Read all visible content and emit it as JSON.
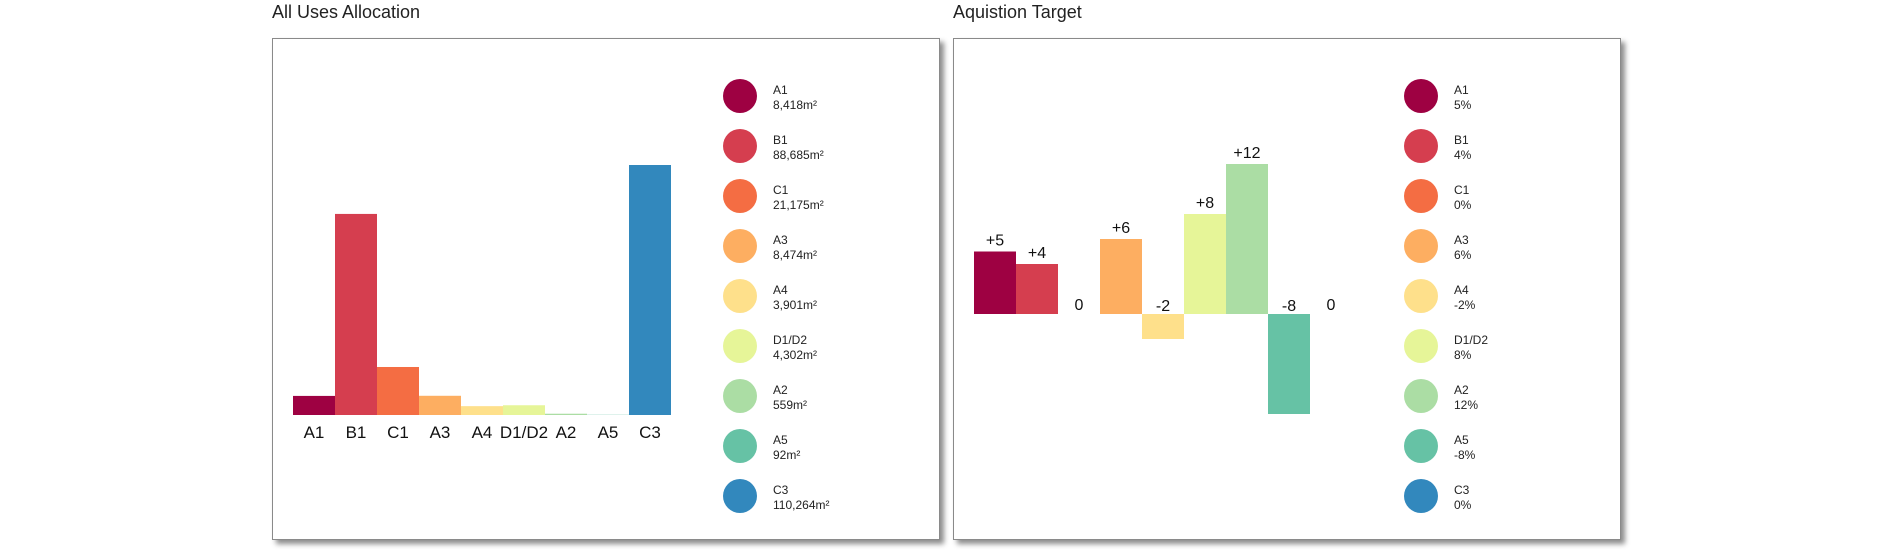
{
  "chart_data": [
    {
      "type": "bar",
      "title": "All Uses Allocation",
      "categories": [
        "A1",
        "B1",
        "C1",
        "A3",
        "A4",
        "D1/D2",
        "A2",
        "A5",
        "C3"
      ],
      "values": [
        8418,
        88685,
        21175,
        8474,
        3901,
        4302,
        559,
        92,
        110264
      ],
      "colors": [
        "#9e0142",
        "#d53e4f",
        "#f46d43",
        "#fdae61",
        "#fee08b",
        "#e6f598",
        "#abdda4",
        "#66c2a5",
        "#3288bd"
      ],
      "ylim": [
        0,
        110264
      ],
      "legend_position": "right",
      "legend": [
        {
          "name": "A1",
          "value": "8,418m²",
          "color": "#9e0142"
        },
        {
          "name": "B1",
          "value": "88,685m²",
          "color": "#d53e4f"
        },
        {
          "name": "C1",
          "value": "21,175m²",
          "color": "#f46d43"
        },
        {
          "name": "A3",
          "value": "8,474m²",
          "color": "#fdae61"
        },
        {
          "name": "A4",
          "value": "3,901m²",
          "color": "#fee08b"
        },
        {
          "name": "D1/D2",
          "value": "4,302m²",
          "color": "#e6f598"
        },
        {
          "name": "A2",
          "value": "559m²",
          "color": "#abdda4"
        },
        {
          "name": "A5",
          "value": "92m²",
          "color": "#66c2a5"
        },
        {
          "name": "C3",
          "value": "110,264m²",
          "color": "#3288bd"
        }
      ]
    },
    {
      "type": "bar",
      "title": "Aquistion Target",
      "categories": [
        "A1",
        "B1",
        "C1",
        "A3",
        "A4",
        "D1/D2",
        "A2",
        "A5",
        "C3"
      ],
      "values": [
        5,
        4,
        0,
        6,
        -2,
        8,
        12,
        -8,
        0
      ],
      "data_labels": [
        "+5",
        "+4",
        "0",
        "+6",
        "-2",
        "+8",
        "+12",
        "-8",
        "0"
      ],
      "colors": [
        "#9e0142",
        "#d53e4f",
        "#f46d43",
        "#fdae61",
        "#fee08b",
        "#e6f598",
        "#abdda4",
        "#66c2a5",
        "#3288bd"
      ],
      "ylim": [
        -8,
        12
      ],
      "legend_position": "right",
      "legend": [
        {
          "name": "A1",
          "value": "5%",
          "color": "#9e0142"
        },
        {
          "name": "B1",
          "value": "4%",
          "color": "#d53e4f"
        },
        {
          "name": "C1",
          "value": "0%",
          "color": "#f46d43"
        },
        {
          "name": "A3",
          "value": "6%",
          "color": "#fdae61"
        },
        {
          "name": "A4",
          "value": "-2%",
          "color": "#fee08b"
        },
        {
          "name": "D1/D2",
          "value": "8%",
          "color": "#e6f598"
        },
        {
          "name": "A2",
          "value": "12%",
          "color": "#abdda4"
        },
        {
          "name": "A5",
          "value": "-8%",
          "color": "#66c2a5"
        },
        {
          "name": "C3",
          "value": "0%",
          "color": "#3288bd"
        }
      ]
    }
  ]
}
